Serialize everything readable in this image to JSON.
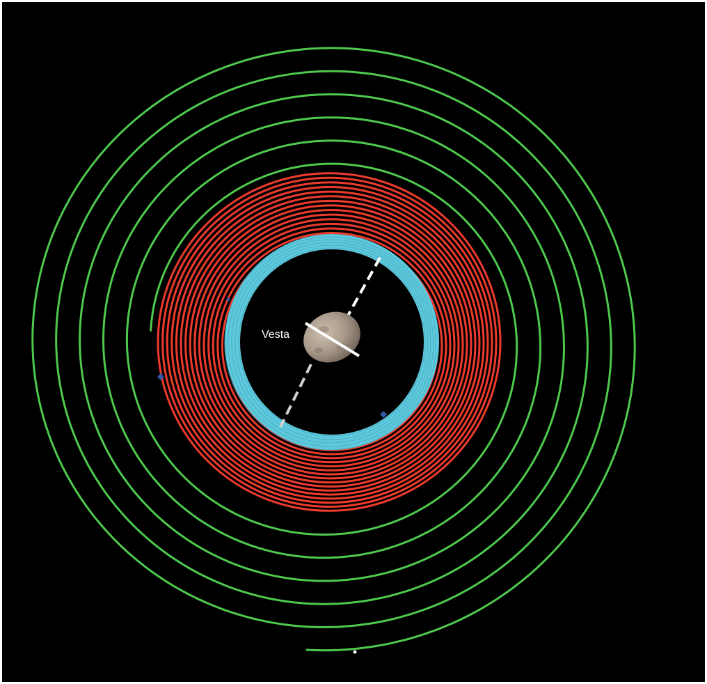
{
  "diagram": {
    "body_label": "Vesta",
    "colors": {
      "background": "#000000",
      "approach_spiral": "#4ec94e",
      "mid_spiral": "#ee3b2d",
      "inner_ring": "#5ec8dc",
      "axis": "#ffffff",
      "axis_dashed": "#cfcfcf",
      "markers": "#3358a8",
      "asteroid": "#a8998a"
    },
    "icons": [
      "asteroid-image",
      "marker-diamond"
    ]
  }
}
